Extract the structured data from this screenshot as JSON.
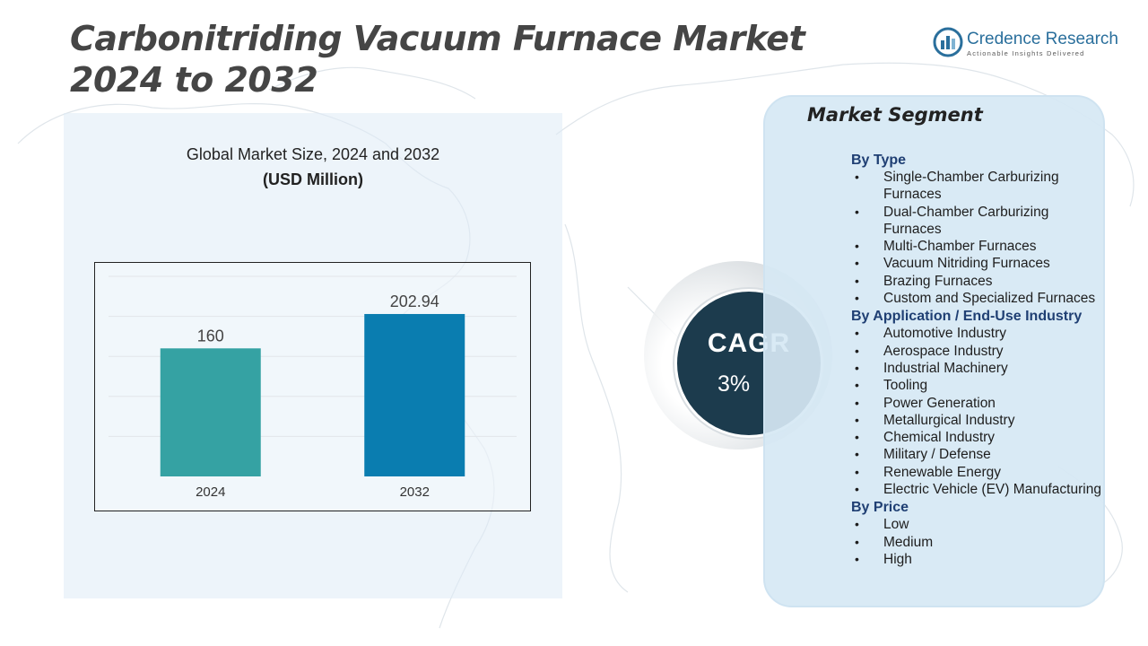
{
  "title": {
    "line1": "Carbonitriding Vacuum Furnace Market",
    "line2": "2024 to 2032"
  },
  "logo": {
    "name": "Credence Research",
    "tagline": "Actionable Insights Delivered"
  },
  "chart_heading": {
    "line1": "Global Market Size, 2024 and 2032",
    "line2": "(USD Million)"
  },
  "chart_data": {
    "type": "bar",
    "title": "Global Market Size, 2024 and 2032",
    "subtitle": "(USD Million)",
    "categories": [
      "2024",
      "2032"
    ],
    "values": [
      160,
      202.94
    ],
    "value_labels": [
      "160",
      "202.94"
    ],
    "colors": [
      "#35a2a3",
      "#0a7db0"
    ],
    "ylim": [
      0,
      250
    ],
    "grid": true,
    "xlabel": "",
    "ylabel": ""
  },
  "cagr": {
    "label": "CAGR",
    "value": "3%"
  },
  "segments": {
    "title": "Market Segment",
    "groups": [
      {
        "heading": "By Type",
        "items": [
          "Single-Chamber Carburizing Furnaces",
          "Dual-Chamber Carburizing Furnaces",
          "Multi-Chamber Furnaces",
          "Vacuum Nitriding Furnaces",
          "Brazing Furnaces",
          "Custom and Specialized Furnaces"
        ]
      },
      {
        "heading": "By Application / End-Use Industry",
        "items": [
          "Automotive Industry",
          "Aerospace Industry",
          "Industrial Machinery",
          "Tooling",
          "Power Generation",
          "Metallurgical Industry",
          "Chemical Industry",
          "Military / Defense",
          "Renewable Energy",
          "Electric Vehicle (EV) Manufacturing"
        ]
      },
      {
        "heading": "By Price",
        "items": [
          "Low",
          "Medium",
          "High"
        ]
      }
    ]
  }
}
